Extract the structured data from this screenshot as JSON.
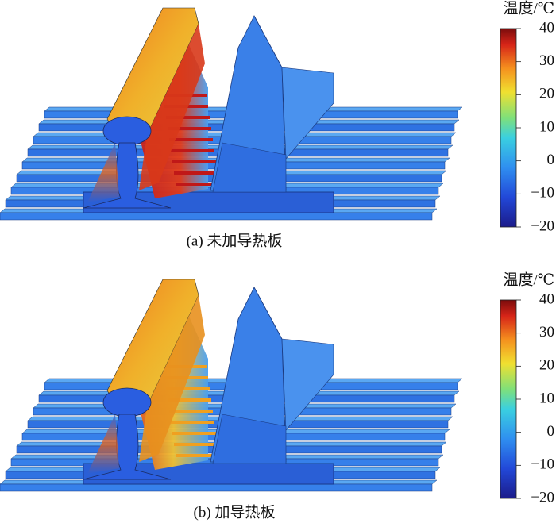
{
  "panels": [
    {
      "caption": "(a)  未加导热板",
      "colorbar": {
        "title": "温度/℃",
        "ticks": [
          40,
          30,
          20,
          10,
          0,
          {
            "value": -10,
            "label": "−10"
          },
          {
            "value": -20,
            "label": "−20"
          }
        ]
      }
    },
    {
      "caption": "(b)  加导热板",
      "colorbar": {
        "title": "温度/℃",
        "ticks": [
          40,
          30,
          20,
          10,
          0,
          {
            "value": -10,
            "label": "−10"
          },
          {
            "value": -20,
            "label": "−20"
          }
        ]
      }
    }
  ]
}
